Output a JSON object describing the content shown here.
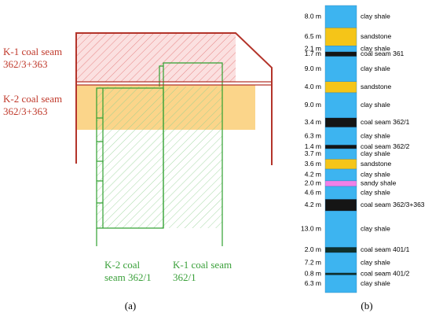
{
  "panel_a": {
    "labels": {
      "k1_top": [
        "K-1 coal seam",
        "362/3+363"
      ],
      "k2_top": [
        "K-2 coal seam",
        "362/3+363"
      ],
      "k2_bottom": [
        "K-2 coal",
        "seam 362/1"
      ],
      "k1_bottom": [
        "K-1 coal seam",
        "362/1"
      ]
    },
    "caption": "(a)"
  },
  "panel_b": {
    "caption": "(b)",
    "layers": [
      {
        "thickness": 8.0,
        "label": "8.0 m",
        "name": "clay shale",
        "color": "#3db4f0"
      },
      {
        "thickness": 6.5,
        "label": "6.5 m",
        "name": "sandstone",
        "color": "#f5c518"
      },
      {
        "thickness": 2.1,
        "label": "2.1 m",
        "name": "clay shale",
        "color": "#3db4f0"
      },
      {
        "thickness": 1.7,
        "label": "1.7 m",
        "name": "coal seam 361",
        "color": "#151515"
      },
      {
        "thickness": 9.0,
        "label": "9.0 m",
        "name": "clay shale",
        "color": "#3db4f0"
      },
      {
        "thickness": 4.0,
        "label": "4.0 m",
        "name": "sandstone",
        "color": "#f5c518"
      },
      {
        "thickness": 9.0,
        "label": "9.0 m",
        "name": "clay shale",
        "color": "#3db4f0"
      },
      {
        "thickness": 3.4,
        "label": "3.4 m",
        "name": "coal seam 362/1",
        "color": "#151515"
      },
      {
        "thickness": 6.3,
        "label": "6.3 m",
        "name": "clay shale",
        "color": "#3db4f0"
      },
      {
        "thickness": 1.4,
        "label": "1.4 m",
        "name": "coal seam 362/2",
        "color": "#151515"
      },
      {
        "thickness": 3.7,
        "label": "3.7 m",
        "name": "clay shale",
        "color": "#3db4f0"
      },
      {
        "thickness": 3.6,
        "label": "3.6 m",
        "name": "sandstone",
        "color": "#f5c518"
      },
      {
        "thickness": 4.2,
        "label": "4.2 m",
        "name": "clay shale",
        "color": "#3db4f0"
      },
      {
        "thickness": 2.0,
        "label": "2.0 m",
        "name": "sandy shale",
        "color": "#f080e8"
      },
      {
        "thickness": 4.6,
        "label": "4.6 m",
        "name": "clay shale",
        "color": "#3db4f0"
      },
      {
        "thickness": 4.2,
        "label": "4.2 m",
        "name": "coal seam 362/3+363",
        "color": "#151515"
      },
      {
        "thickness": 13.0,
        "label": "13.0 m",
        "name": "clay shale",
        "color": "#3db4f0"
      },
      {
        "thickness": 2.0,
        "label": "2.0 m",
        "name": "coal seam 401/1",
        "color": "#10302c"
      },
      {
        "thickness": 7.2,
        "label": "7.2 m",
        "name": "clay shale",
        "color": "#3db4f0"
      },
      {
        "thickness": 0.8,
        "label": "0.8 m",
        "name": "coal seam 401/2",
        "color": "#10302c"
      },
      {
        "thickness": 6.3,
        "label": "6.3 m",
        "name": "clay shale",
        "color": "#3db4f0"
      }
    ]
  }
}
